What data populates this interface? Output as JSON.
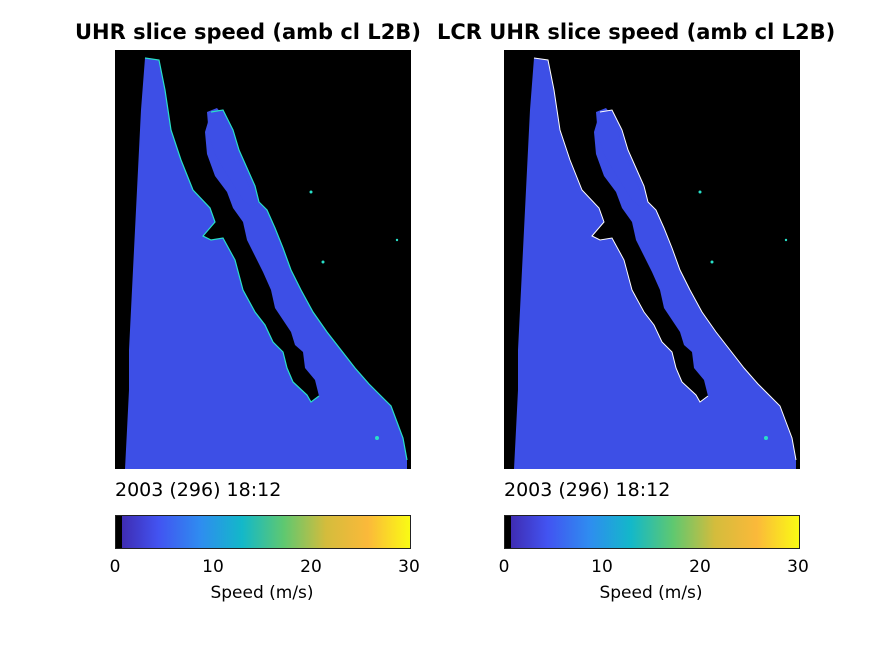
{
  "panels": [
    {
      "title": "UHR slice speed (amb cl L2B)",
      "timestamp": "2003 (296) 18:12",
      "colorbar": {
        "ticks": [
          "0",
          "10",
          "20",
          "30"
        ],
        "label": "Speed (m/s)",
        "min": 0,
        "max": 30
      }
    },
    {
      "title": "LCR UHR slice speed (amb cl L2B)",
      "timestamp": "2003 (296) 18:12",
      "colorbar": {
        "ticks": [
          "0",
          "10",
          "20",
          "30"
        ],
        "label": "Speed (m/s)",
        "min": 0,
        "max": 30
      }
    }
  ],
  "colors": {
    "land": "#000000",
    "ocean": "#3d4fe6",
    "coast_edge": "#28e0c8",
    "colormap": [
      "#3e26a8",
      "#4253f1",
      "#2f8cf0",
      "#13b8c9",
      "#5fc870",
      "#d4bc3c",
      "#fbb93a",
      "#f9fb14"
    ]
  },
  "icons": [
    "speed-map-image",
    "colorbar"
  ]
}
